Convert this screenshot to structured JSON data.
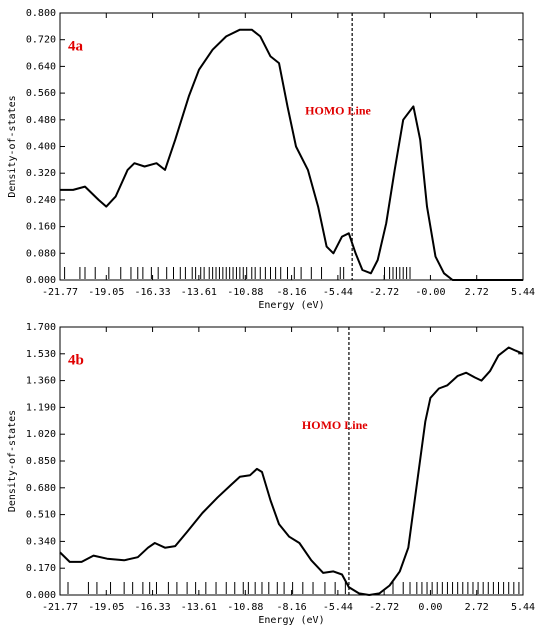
{
  "chart_data": [
    {
      "type": "line",
      "panel_label": "4a",
      "xlabel": "Energy (eV)",
      "ylabel": "Density-of-states",
      "annotation": "HOMO Line",
      "homo": -4.6,
      "x": [
        -21.77,
        -21.0,
        -20.3,
        -19.5,
        -19.05,
        -18.5,
        -17.8,
        -17.4,
        -16.8,
        -16.1,
        -15.6,
        -15.0,
        -14.2,
        -13.6,
        -12.8,
        -12.0,
        -11.2,
        -10.5,
        -10.0,
        -9.4,
        -8.9,
        -8.4,
        -7.9,
        -7.2,
        -6.6,
        -6.1,
        -5.7,
        -5.2,
        -4.8,
        -4.4,
        -4.0,
        -3.5,
        -3.1,
        -2.6,
        -2.1,
        -1.6,
        -1.0,
        -0.6,
        -0.2,
        0.3,
        0.8,
        1.3,
        5.44
      ],
      "series": [
        {
          "name": "DOS",
          "color": "#000000",
          "values": [
            0.27,
            0.27,
            0.28,
            0.24,
            0.22,
            0.25,
            0.33,
            0.35,
            0.34,
            0.35,
            0.33,
            0.42,
            0.55,
            0.63,
            0.69,
            0.73,
            0.75,
            0.75,
            0.73,
            0.67,
            0.65,
            0.52,
            0.4,
            0.33,
            0.22,
            0.1,
            0.08,
            0.13,
            0.14,
            0.08,
            0.03,
            0.02,
            0.06,
            0.17,
            0.33,
            0.48,
            0.52,
            0.42,
            0.22,
            0.07,
            0.02,
            0.0,
            0.0
          ]
        }
      ],
      "levels": [
        -21.5,
        -20.6,
        -20.3,
        -19.7,
        -18.9,
        -18.2,
        -17.6,
        -17.2,
        -16.9,
        -16.4,
        -16.0,
        -15.5,
        -15.1,
        -14.7,
        -14.4,
        -14.0,
        -13.8,
        -13.5,
        -13.3,
        -13.0,
        -12.8,
        -12.6,
        -12.4,
        -12.2,
        -12.0,
        -11.8,
        -11.6,
        -11.4,
        -11.2,
        -11.0,
        -10.8,
        -10.5,
        -10.3,
        -10.0,
        -9.7,
        -9.4,
        -9.1,
        -8.8,
        -8.4,
        -8.0,
        -7.6,
        -7.0,
        -6.4,
        -5.3,
        -5.1,
        -2.7,
        -2.4,
        -2.2,
        -2.0,
        -1.8,
        -1.6,
        -1.4,
        -1.2
      ],
      "xlim": [
        -21.77,
        5.44
      ],
      "ylim": [
        0,
        0.8
      ],
      "xticks": [
        -21.77,
        -19.05,
        -16.33,
        -13.61,
        -10.88,
        -8.16,
        -5.44,
        -2.72,
        {
          "value": 0,
          "label": "-0.00"
        },
        2.72,
        5.44
      ],
      "yticks": [
        {
          "value": 0,
          "label": "0.000"
        },
        {
          "value": 0.08,
          "label": "0.080"
        },
        {
          "value": 0.16,
          "label": "0.160"
        },
        {
          "value": 0.24,
          "label": "0.240"
        },
        {
          "value": 0.32,
          "label": "0.320"
        },
        {
          "value": 0.4,
          "label": "0.400"
        },
        {
          "value": 0.48,
          "label": "0.480"
        },
        {
          "value": 0.56,
          "label": "0.560"
        },
        {
          "value": 0.64,
          "label": "0.640"
        },
        {
          "value": 0.72,
          "label": "0.720"
        },
        {
          "value": 0.8,
          "label": "0.800"
        }
      ]
    },
    {
      "type": "line",
      "panel_label": "4b",
      "xlabel": "Energy (eV)",
      "ylabel": "Density-of-states",
      "annotation": "HOMO Line",
      "homo": -4.79,
      "x": [
        -21.77,
        -21.2,
        -20.5,
        -19.8,
        -19.0,
        -18.0,
        -17.2,
        -16.6,
        -16.2,
        -15.6,
        -15.0,
        -14.3,
        -13.4,
        -12.5,
        -11.7,
        -11.2,
        -10.6,
        -10.2,
        -9.9,
        -9.4,
        -8.9,
        -8.3,
        -7.7,
        -7.0,
        -6.3,
        -5.7,
        -5.2,
        -4.8,
        -4.2,
        -3.6,
        -3.0,
        -2.4,
        -1.8,
        -1.3,
        -0.8,
        -0.3,
        0.0,
        0.5,
        1.0,
        1.6,
        2.1,
        2.6,
        3.0,
        3.5,
        4.0,
        4.6,
        5.0,
        5.44
      ],
      "series": [
        {
          "name": "DOS",
          "color": "#000000",
          "values": [
            0.27,
            0.21,
            0.21,
            0.25,
            0.23,
            0.22,
            0.24,
            0.3,
            0.33,
            0.3,
            0.31,
            0.4,
            0.52,
            0.62,
            0.7,
            0.75,
            0.76,
            0.8,
            0.78,
            0.6,
            0.45,
            0.37,
            0.33,
            0.22,
            0.14,
            0.15,
            0.13,
            0.05,
            0.01,
            0.0,
            0.01,
            0.06,
            0.15,
            0.3,
            0.7,
            1.1,
            1.25,
            1.31,
            1.33,
            1.39,
            1.41,
            1.38,
            1.36,
            1.42,
            1.52,
            1.57,
            1.55,
            1.53
          ]
        }
      ],
      "levels": [
        -21.3,
        -20.1,
        -19.6,
        -18.8,
        -18.0,
        -17.5,
        -16.9,
        -16.5,
        -16.1,
        -15.4,
        -14.9,
        -14.3,
        -13.8,
        -13.2,
        -12.6,
        -12.0,
        -11.5,
        -11.0,
        -10.7,
        -10.3,
        -9.9,
        -9.5,
        -9.0,
        -8.6,
        -8.1,
        -7.5,
        -6.9,
        -6.2,
        -5.6,
        -5.0,
        -2.2,
        -1.6,
        -1.2,
        -0.8,
        -0.5,
        -0.2,
        0.1,
        0.4,
        0.7,
        1.0,
        1.3,
        1.6,
        1.9,
        2.2,
        2.5,
        2.8,
        3.1,
        3.4,
        3.7,
        4.0,
        4.3,
        4.6,
        4.9,
        5.2
      ],
      "xlim": [
        -21.77,
        5.44
      ],
      "ylim": [
        0,
        1.7
      ],
      "xticks": [
        -21.77,
        -19.05,
        -16.33,
        -13.61,
        -10.88,
        -8.16,
        -5.44,
        -2.72,
        {
          "value": 0,
          "label": "0.00"
        },
        2.72,
        5.44
      ],
      "yticks": [
        {
          "value": 0,
          "label": "0.000"
        },
        0.17,
        {
          "value": 0.34,
          "label": "0.340"
        },
        0.51,
        {
          "value": 0.68,
          "label": "0.680"
        },
        0.85,
        {
          "value": 1.02,
          "label": "1.020"
        },
        1.19,
        {
          "value": 1.36,
          "label": "1.360"
        },
        1.53,
        {
          "value": 1.7,
          "label": "1.700"
        }
      ]
    }
  ]
}
